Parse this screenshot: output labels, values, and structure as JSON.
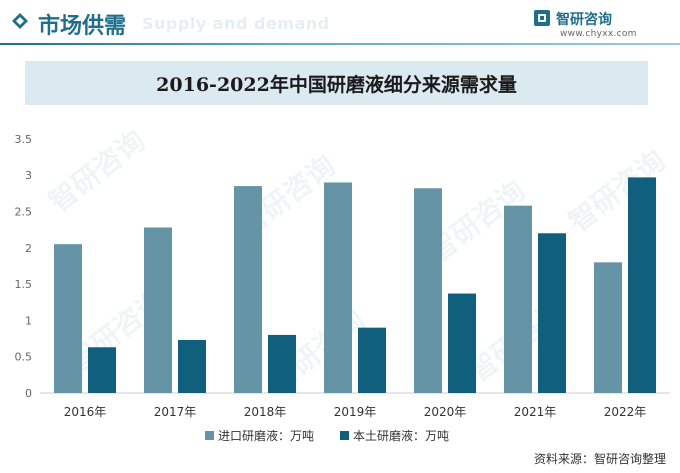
{
  "header": {
    "title": "市场供需",
    "subtitle": "Supply and demand"
  },
  "brand": {
    "name": "智研咨询",
    "url": "www.chyxx.com"
  },
  "watermark_text": "智研咨询",
  "source": "资料来源：智研咨询整理",
  "colors": {
    "accent": "#1f6e8c",
    "series_import": "#6594a7",
    "series_domestic": "#0f5f7d",
    "title_bg": "#dbe9f1"
  },
  "chart_data": {
    "type": "bar",
    "title": "2016-2022年中国研磨液细分来源需求量",
    "categories": [
      "2016年",
      "2017年",
      "2018年",
      "2019年",
      "2020年",
      "2021年",
      "2022年"
    ],
    "series": [
      {
        "name": "进口研磨液：万吨",
        "values": [
          2.05,
          2.28,
          2.85,
          2.9,
          2.82,
          2.58,
          1.8
        ]
      },
      {
        "name": "本土研磨液：万吨",
        "values": [
          0.63,
          0.73,
          0.8,
          0.9,
          1.37,
          2.2,
          2.97
        ]
      }
    ],
    "yticks": [
      "0",
      "0.5",
      "1",
      "1.5",
      "2",
      "2.5",
      "3",
      "3.5"
    ],
    "ylim": [
      0,
      3.5
    ],
    "xlabel": "",
    "ylabel": "",
    "grid": false,
    "legend": "bottom"
  }
}
